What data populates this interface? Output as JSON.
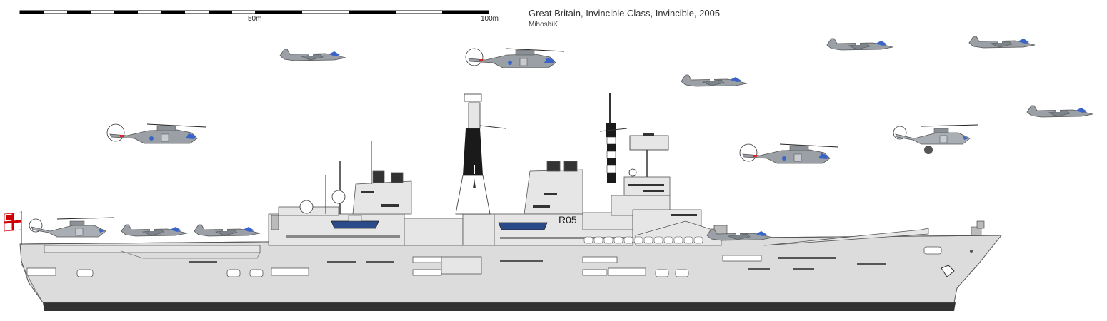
{
  "title": "Great Britain, Invincible Class, Invincible, 2005",
  "author": "MihoshiK",
  "scale": {
    "labels": [
      "50m",
      "100m"
    ]
  },
  "pennant_number": "R05",
  "colors": {
    "hull": "#dcdcdc",
    "hull_line": "#555555",
    "boot_top": "#333333",
    "superstructure": "#e6e6e6",
    "mast_dark": "#1a1a1a",
    "boat": "#2a4a8a",
    "aircraft": "#9aa0a6",
    "canopy": "#3a64c8"
  },
  "icons": [
    "ensign-flag-icon",
    "harrier-jet-icon",
    "merlin-helicopter-icon"
  ]
}
